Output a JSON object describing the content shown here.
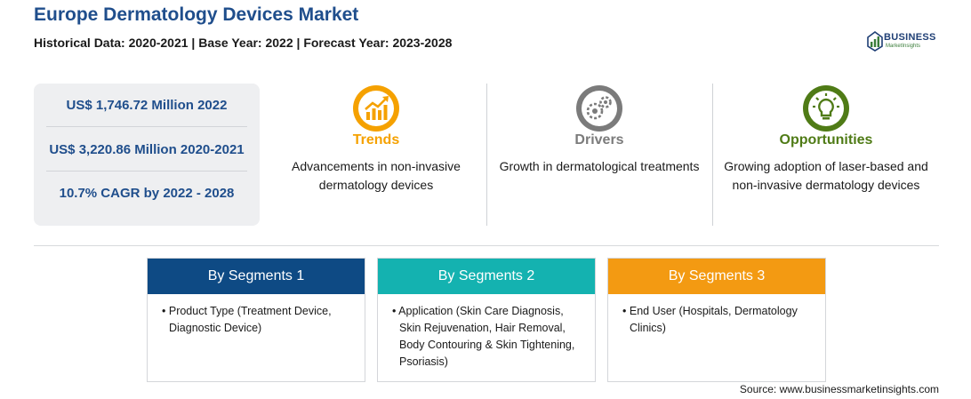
{
  "header": {
    "title": "Europe Dermatology Devices Market",
    "subtitle": "Historical Data: 2020-2021 | Base Year: 2022 | Forecast Year: 2023-2028"
  },
  "logo": {
    "word": "BUSINESS",
    "tagline": "MarketInsights"
  },
  "stats": [
    "US$ 1,746.72 Million 2022",
    "US$ 3,220.86 Million 2020-2021",
    "10.7% CAGR by 2022 - 2028"
  ],
  "columns": [
    {
      "heading": "Trends",
      "color": "#f5a100",
      "icon": "trend-chart-icon",
      "text": "Advancements in non-invasive dermatology devices"
    },
    {
      "heading": "Drivers",
      "color": "#7b7b7b",
      "icon": "gears-icon",
      "text": "Growth in dermatological treatments"
    },
    {
      "heading": "Opportunities",
      "color": "#4f7b16",
      "icon": "lightbulb-icon",
      "text": "Growing adoption of laser-based and non-invasive dermatology devices"
    }
  ],
  "segments": [
    {
      "heading": "By Segments 1",
      "color": "#0e4a84",
      "items": [
        "Product Type (Treatment Device, Diagnostic Device)"
      ]
    },
    {
      "heading": "By Segments 2",
      "color": "#14b2b0",
      "items": [
        "Application (Skin Care Diagnosis, Skin Rejuvenation, Hair Removal, Body Contouring & Skin Tightening, Psoriasis)"
      ]
    },
    {
      "heading": "By Segments 3",
      "color": "#f39a12",
      "items": [
        "End User (Hospitals, Dermatology Clinics)"
      ]
    }
  ],
  "source": "Source: www.businessmarketinsights.com"
}
